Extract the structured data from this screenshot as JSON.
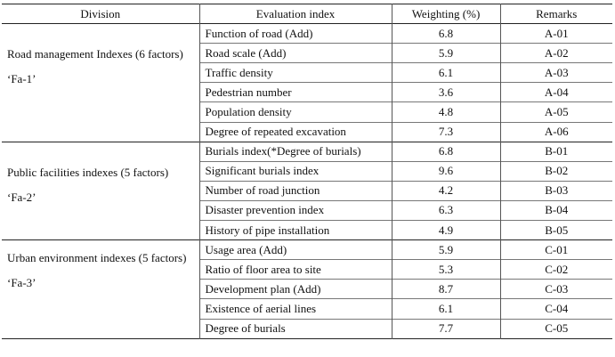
{
  "headers": {
    "division": "Division",
    "index": "Evaluation index",
    "weighting": "Weighting (%)",
    "remarks": "Remarks"
  },
  "groups": [
    {
      "name": "Road management Indexes (6 factors)",
      "code": "‘Fa-1’",
      "rows": [
        {
          "index": "Function of road (Add)",
          "weight": "6.8",
          "remark": "A-01"
        },
        {
          "index": "Road scale (Add)",
          "weight": "5.9",
          "remark": "A-02"
        },
        {
          "index": "Traffic density",
          "weight": "6.1",
          "remark": "A-03"
        },
        {
          "index": "Pedestrian number",
          "weight": "3.6",
          "remark": "A-04"
        },
        {
          "index": "Population density",
          "weight": "4.8",
          "remark": "A-05"
        },
        {
          "index": "Degree of repeated excavation",
          "weight": "7.3",
          "remark": "A-06"
        }
      ]
    },
    {
      "name": "Public facilities indexes (5 factors)",
      "code": "‘Fa-2’",
      "rows": [
        {
          "index": "Burials index(*Degree of burials)",
          "weight": "6.8",
          "remark": "B-01"
        },
        {
          "index": "Significant burials index",
          "weight": "9.6",
          "remark": "B-02"
        },
        {
          "index": "Number of road junction",
          "weight": "4.2",
          "remark": "B-03"
        },
        {
          "index": "Disaster prevention index",
          "weight": "6.3",
          "remark": "B-04"
        },
        {
          "index": "History of pipe installation",
          "weight": "4.9",
          "remark": "B-05"
        }
      ]
    },
    {
      "name": "Urban environment indexes (5 factors)",
      "code": "‘Fa-3’",
      "rows": [
        {
          "index": "Usage area (Add)",
          "weight": "5.9",
          "remark": "C-01"
        },
        {
          "index": "Ratio of floor area to site",
          "weight": "5.3",
          "remark": "C-02"
        },
        {
          "index": "Development plan (Add)",
          "weight": "8.7",
          "remark": "C-03"
        },
        {
          "index": "Existence of aerial lines",
          "weight": "6.1",
          "remark": "C-04"
        },
        {
          "index": "Degree of burials",
          "weight": "7.7",
          "remark": "C-05"
        }
      ]
    }
  ]
}
